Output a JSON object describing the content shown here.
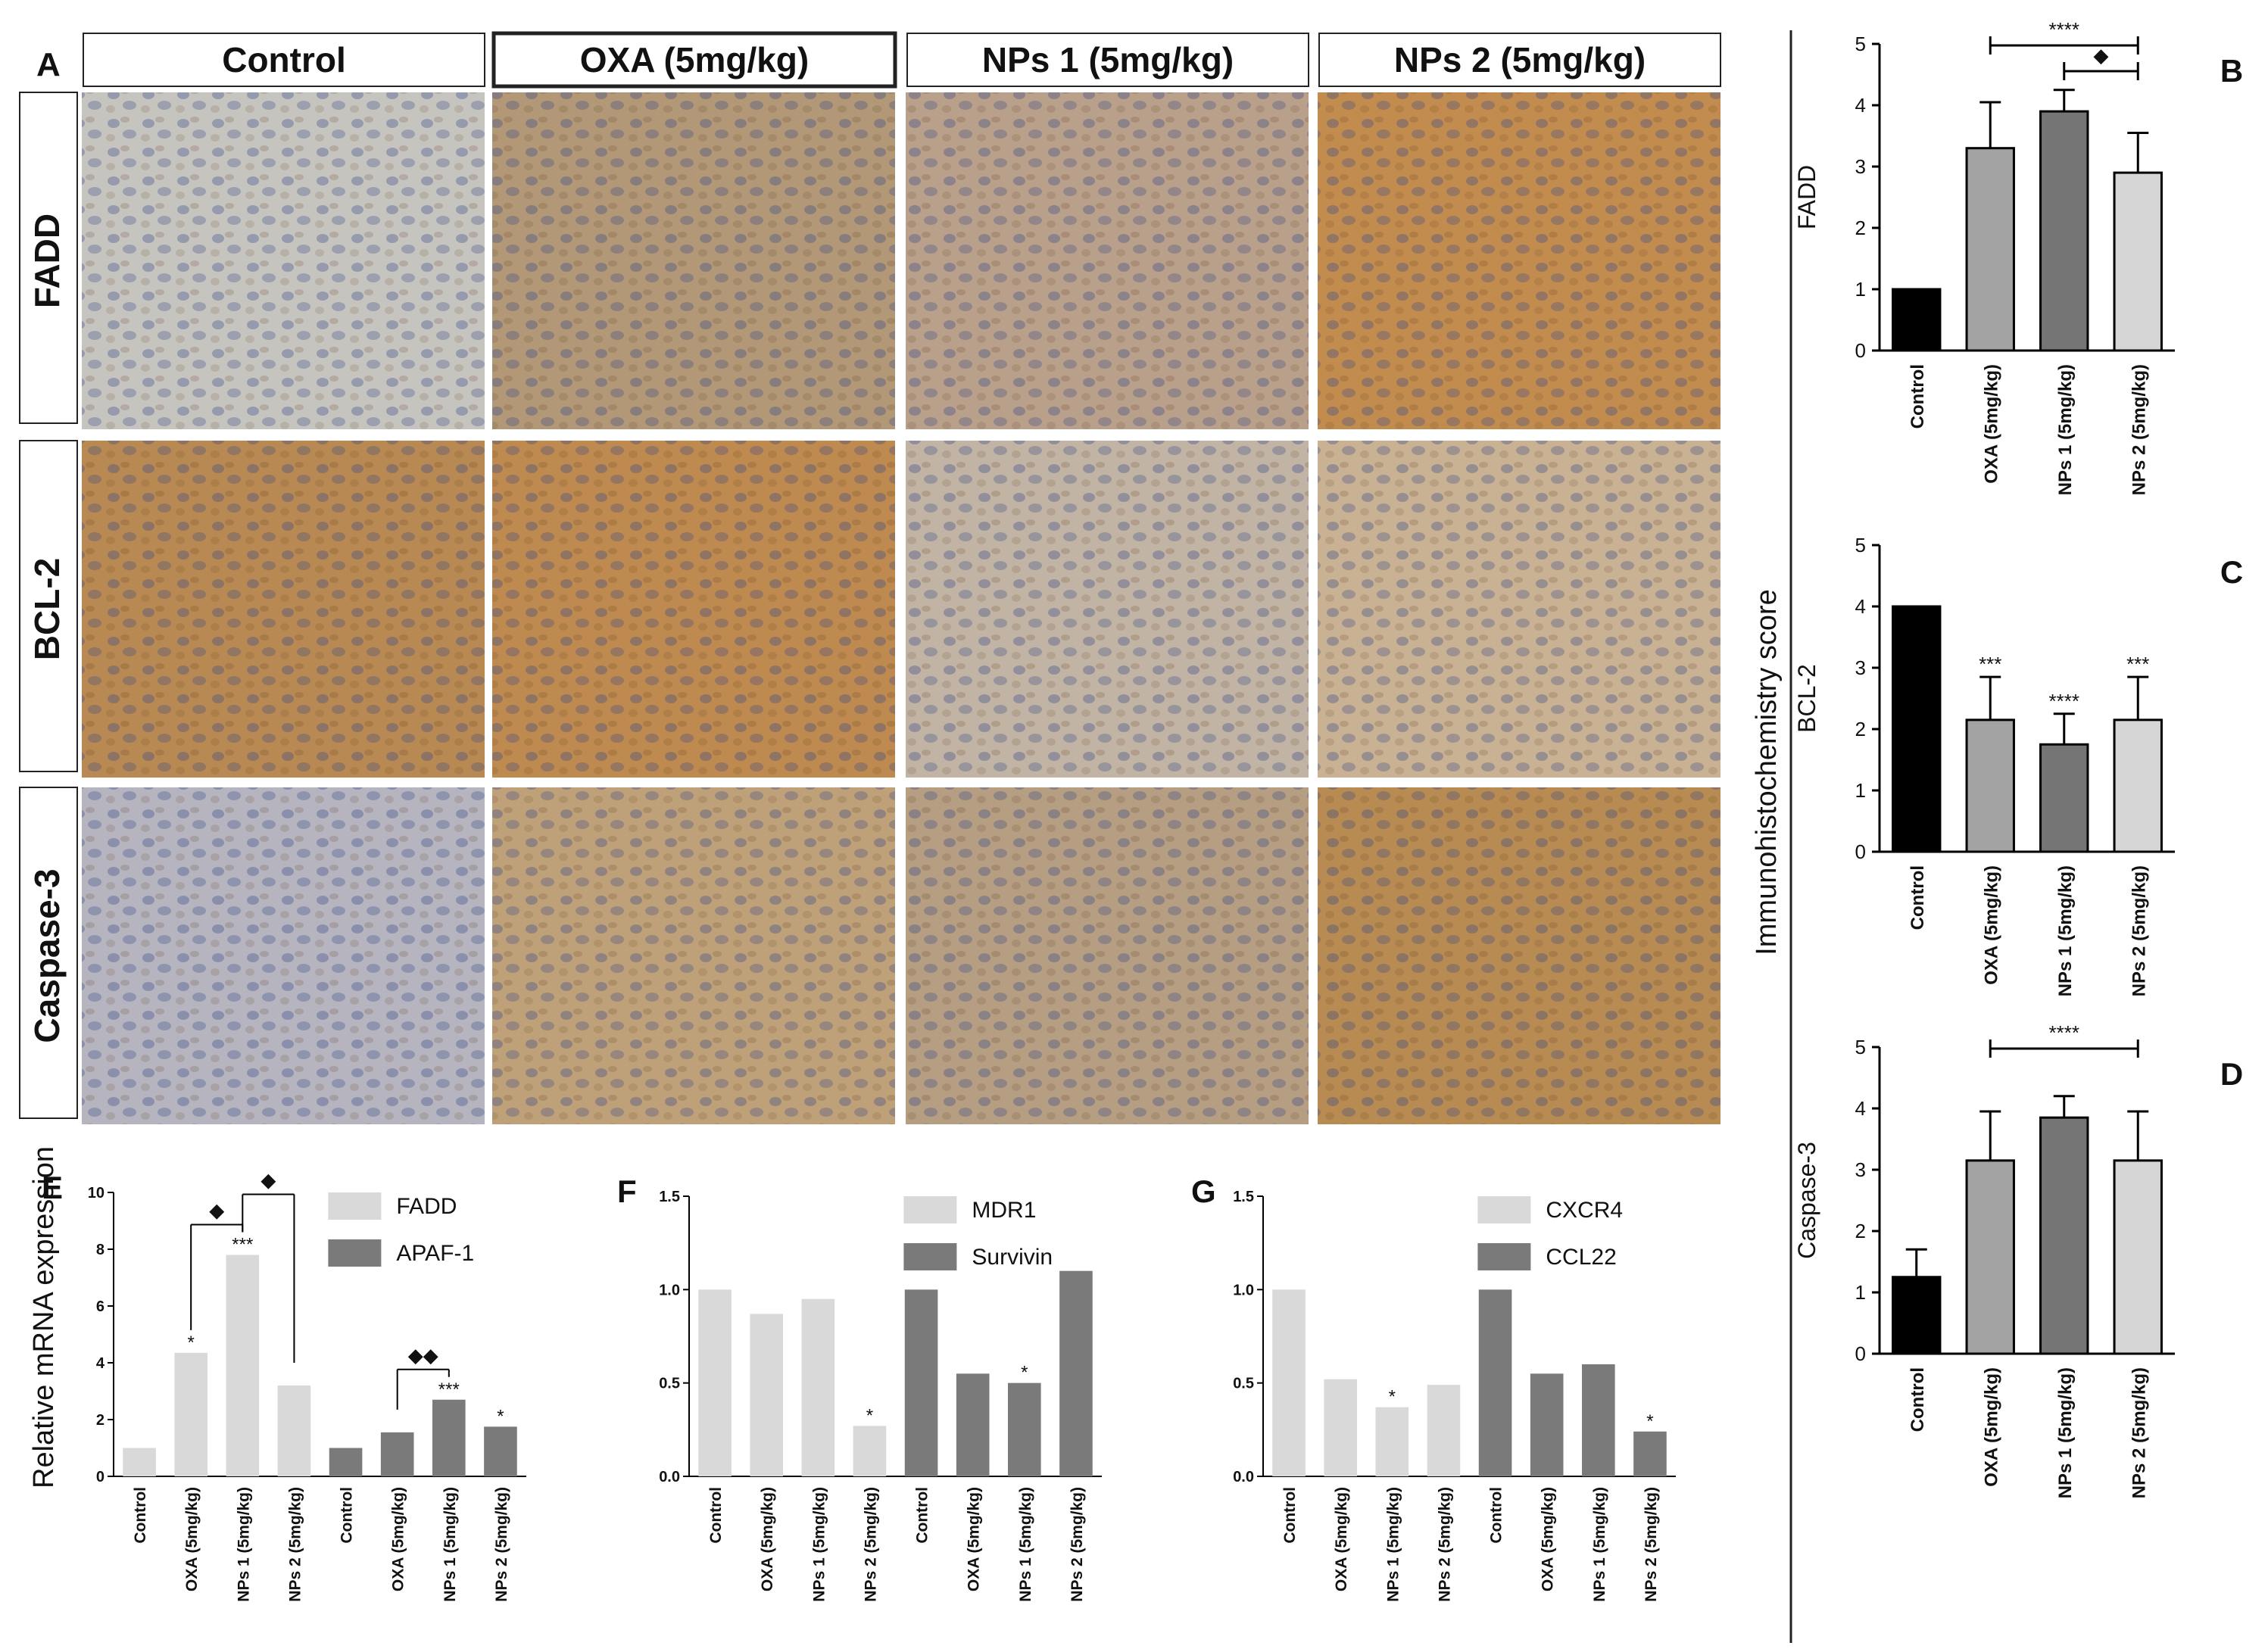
{
  "panel_a": {
    "letter": "A",
    "columns": [
      "Control",
      "OXA (5mg/kg)",
      "NPs 1 (5mg/kg)",
      "NPs 2 (5mg/kg)"
    ],
    "rows": [
      "FADD",
      "BCL-2",
      "Caspase-3"
    ],
    "tile_colors": [
      [
        "#c6c4bf",
        "#b29877",
        "#b9a08a",
        "#c28c4f"
      ],
      [
        "#b88952",
        "#be8a4f",
        "#c2b4a4",
        "#c9b294"
      ],
      [
        "#b5b4bf",
        "#bfa179",
        "#b59e82",
        "#b88b52"
      ]
    ]
  },
  "ihc": {
    "shared_ylabel": "Immunohistochemistry score",
    "categories": [
      "Control",
      "OXA (5mg/kg)",
      "NPs 1 (5mg/kg)",
      "NPs 2 (5mg/kg)"
    ],
    "colors": [
      "#000000",
      "#a3a3a3",
      "#757575",
      "#d6d6d6"
    ]
  },
  "mrna": {
    "ylabel": "Relative mRNA expression",
    "categories": [
      "Control",
      "OXA (5mg/kg)",
      "NPs 1 (5mg/kg)",
      "NPs 2 (5mg/kg)"
    ],
    "light_color": "#d9d9d9",
    "dark_color": "#7a7a7a"
  },
  "chart_data": [
    {
      "id": "B",
      "letter": "B",
      "type": "bar",
      "ylabel": "FADD",
      "categories": [
        "Control",
        "OXA (5mg/kg)",
        "NPs 1 (5mg/kg)",
        "NPs 2 (5mg/kg)"
      ],
      "values": [
        1.0,
        3.3,
        3.9,
        2.9
      ],
      "errors": [
        0,
        0.75,
        0.35,
        0.65
      ],
      "ylim": [
        0,
        5
      ],
      "yticks": [
        "0",
        "1",
        "2",
        "3",
        "4",
        "5"
      ],
      "brackets": [
        {
          "from": 1,
          "to": 3,
          "label": "****"
        },
        {
          "from": 2,
          "to": 3,
          "label": "◆"
        }
      ]
    },
    {
      "id": "C",
      "letter": "C",
      "type": "bar",
      "ylabel": "BCL-2",
      "categories": [
        "Control",
        "OXA (5mg/kg)",
        "NPs 1 (5mg/kg)",
        "NPs 2 (5mg/kg)"
      ],
      "values": [
        4.0,
        2.15,
        1.75,
        2.15
      ],
      "errors": [
        0,
        0.7,
        0.5,
        0.7
      ],
      "ylim": [
        0,
        5
      ],
      "yticks": [
        "0",
        "1",
        "2",
        "3",
        "4",
        "5"
      ],
      "marks": [
        "",
        "***",
        "****",
        "***"
      ]
    },
    {
      "id": "D",
      "letter": "D",
      "type": "bar",
      "ylabel": "Caspase-3",
      "categories": [
        "Control",
        "OXA (5mg/kg)",
        "NPs 1 (5mg/kg)",
        "NPs 2 (5mg/kg)"
      ],
      "values": [
        1.25,
        3.15,
        3.85,
        3.15
      ],
      "errors": [
        0.45,
        0.8,
        0.35,
        0.8
      ],
      "ylim": [
        0,
        5
      ],
      "yticks": [
        "0",
        "1",
        "2",
        "3",
        "4",
        "5"
      ],
      "brackets": [
        {
          "from": 1,
          "to": 3,
          "label": "****"
        }
      ]
    },
    {
      "id": "E",
      "letter": "E",
      "type": "bar",
      "ylim": [
        0,
        10
      ],
      "yticks": [
        "0",
        "2",
        "4",
        "6",
        "8",
        "10"
      ],
      "series": [
        {
          "name": "FADD",
          "values": [
            1.0,
            4.35,
            7.8,
            3.2
          ],
          "marks": [
            "",
            "*",
            "***",
            ""
          ]
        },
        {
          "name": "APAF-1",
          "values": [
            1.0,
            1.55,
            2.7,
            1.75
          ],
          "marks": [
            "",
            "",
            "***",
            "*"
          ]
        }
      ],
      "brackets": [
        {
          "series": 0,
          "from": 1,
          "to": 2,
          "label": "◆"
        },
        {
          "series": 0,
          "from": 2,
          "to": 3,
          "label": "◆"
        },
        {
          "series": 1,
          "from": 1,
          "to": 2,
          "label": "◆◆"
        }
      ]
    },
    {
      "id": "F",
      "letter": "F",
      "type": "bar",
      "ylim": [
        0,
        1.5
      ],
      "yticks": [
        "0.0",
        "0.5",
        "1.0",
        "1.5"
      ],
      "series": [
        {
          "name": "MDR1",
          "values": [
            1.0,
            0.87,
            0.95,
            0.27
          ],
          "marks": [
            "",
            "",
            "",
            "*"
          ]
        },
        {
          "name": "Survivin",
          "values": [
            1.0,
            0.55,
            0.5,
            1.1
          ],
          "marks": [
            "",
            "",
            "*",
            ""
          ]
        }
      ]
    },
    {
      "id": "G",
      "letter": "G",
      "type": "bar",
      "ylim": [
        0,
        1.5
      ],
      "yticks": [
        "0.0",
        "0.5",
        "1.0",
        "1.5"
      ],
      "series": [
        {
          "name": "CXCR4",
          "values": [
            1.0,
            0.52,
            0.37,
            0.49
          ],
          "marks": [
            "",
            "",
            "*",
            ""
          ]
        },
        {
          "name": "CCL22",
          "values": [
            1.0,
            0.55,
            0.6,
            0.24
          ],
          "marks": [
            "",
            "",
            "",
            "*"
          ]
        }
      ]
    }
  ]
}
